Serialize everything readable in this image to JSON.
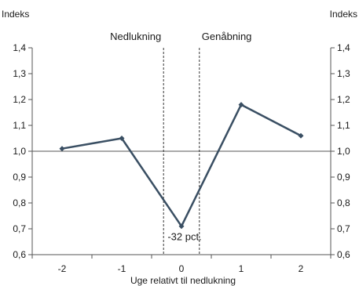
{
  "chart_data": {
    "type": "line",
    "x": [
      -2,
      -1,
      0,
      1,
      2
    ],
    "xticks": [
      "-2",
      "-1",
      "0",
      "1",
      "2"
    ],
    "xlim": [
      -2.5,
      2.5
    ],
    "series": [
      {
        "values": [
          1.01,
          1.05,
          0.71,
          1.18,
          1.06
        ],
        "color": "#3a4f63"
      }
    ],
    "ylim": [
      0.6,
      1.4
    ],
    "yticks": [
      "0,6",
      "0,7",
      "0,8",
      "0,9",
      "1,0",
      "1,1",
      "1,2",
      "1,3",
      "1,4"
    ],
    "ylabel_left": "Indeks",
    "ylabel_right": "Indeks",
    "xlabel": "Uge relativt til nedlukning",
    "reference_line": 1.0,
    "vlines": [
      {
        "x": -0.3,
        "label": "Nedlukning"
      },
      {
        "x": 0.3,
        "label": "Genåbning"
      }
    ],
    "annotation": {
      "text": "-32 pct.",
      "x": 0,
      "y": 0.71
    },
    "grid": false,
    "legend": "none"
  }
}
